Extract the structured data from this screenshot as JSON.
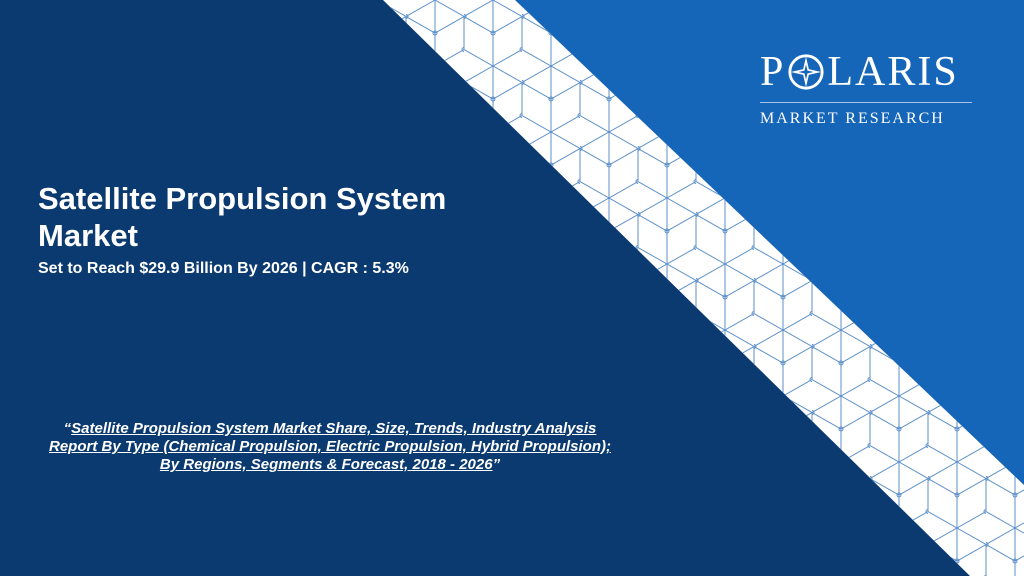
{
  "slide": {
    "title_line1": "Satellite Propulsion System",
    "title_line2": "Market",
    "subtitle": "Set to Reach $29.9 Billion By 2026 | CAGR : 5.3%",
    "quote_open": "“",
    "quote_text": "Satellite Propulsion System Market Share, Size, Trends, Industry Analysis Report By Type (Chemical Propulsion, Electric Propulsion, Hybrid Propulsion); By Regions, Segments & Forecast, 2018 - 2026",
    "quote_close": "”"
  },
  "logo": {
    "name_left": "P",
    "name_right": "LARIS",
    "tagline": "MARKET RESEARCH"
  },
  "colors": {
    "navy": "#0b3a70",
    "blue": "#1565b8",
    "band": "#ffffff",
    "pattern": "#5b8fc9"
  }
}
